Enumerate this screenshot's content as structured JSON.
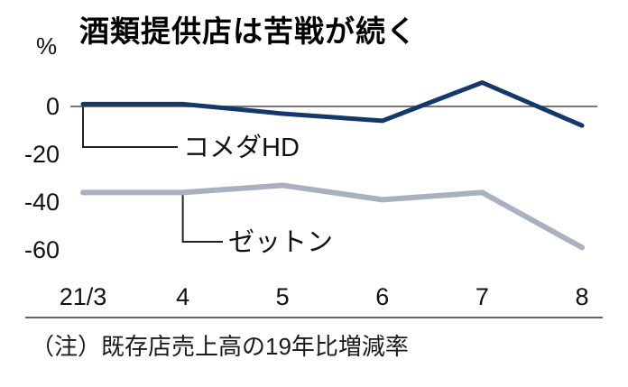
{
  "chart_data": {
    "type": "line",
    "title": "酒類提供店は苦戦が続く",
    "unit": "%",
    "note": "（注）既存店売上高の19年比増減率",
    "x": [
      "21/3",
      "4",
      "5",
      "6",
      "7",
      "8"
    ],
    "xlabel": "",
    "ylabel": "%",
    "y_ticks": [
      0,
      -20,
      -40,
      -60
    ],
    "ylim": [
      -65,
      14
    ],
    "grid": false,
    "legend_position": "inline-labels",
    "colors": {
      "axis_line": "#777777",
      "separator_line": "#333333",
      "tick_text": "#111111",
      "leader_line": "#222222",
      "label_text": "#111111"
    },
    "series": [
      {
        "name": "コメダHD",
        "color": "#14386b",
        "values": [
          1,
          1,
          -3,
          -6,
          10,
          -8
        ]
      },
      {
        "name": "ゼットン",
        "color": "#a9b0bf",
        "values": [
          -36,
          -36,
          -33,
          -39,
          -36,
          -59
        ]
      }
    ]
  }
}
